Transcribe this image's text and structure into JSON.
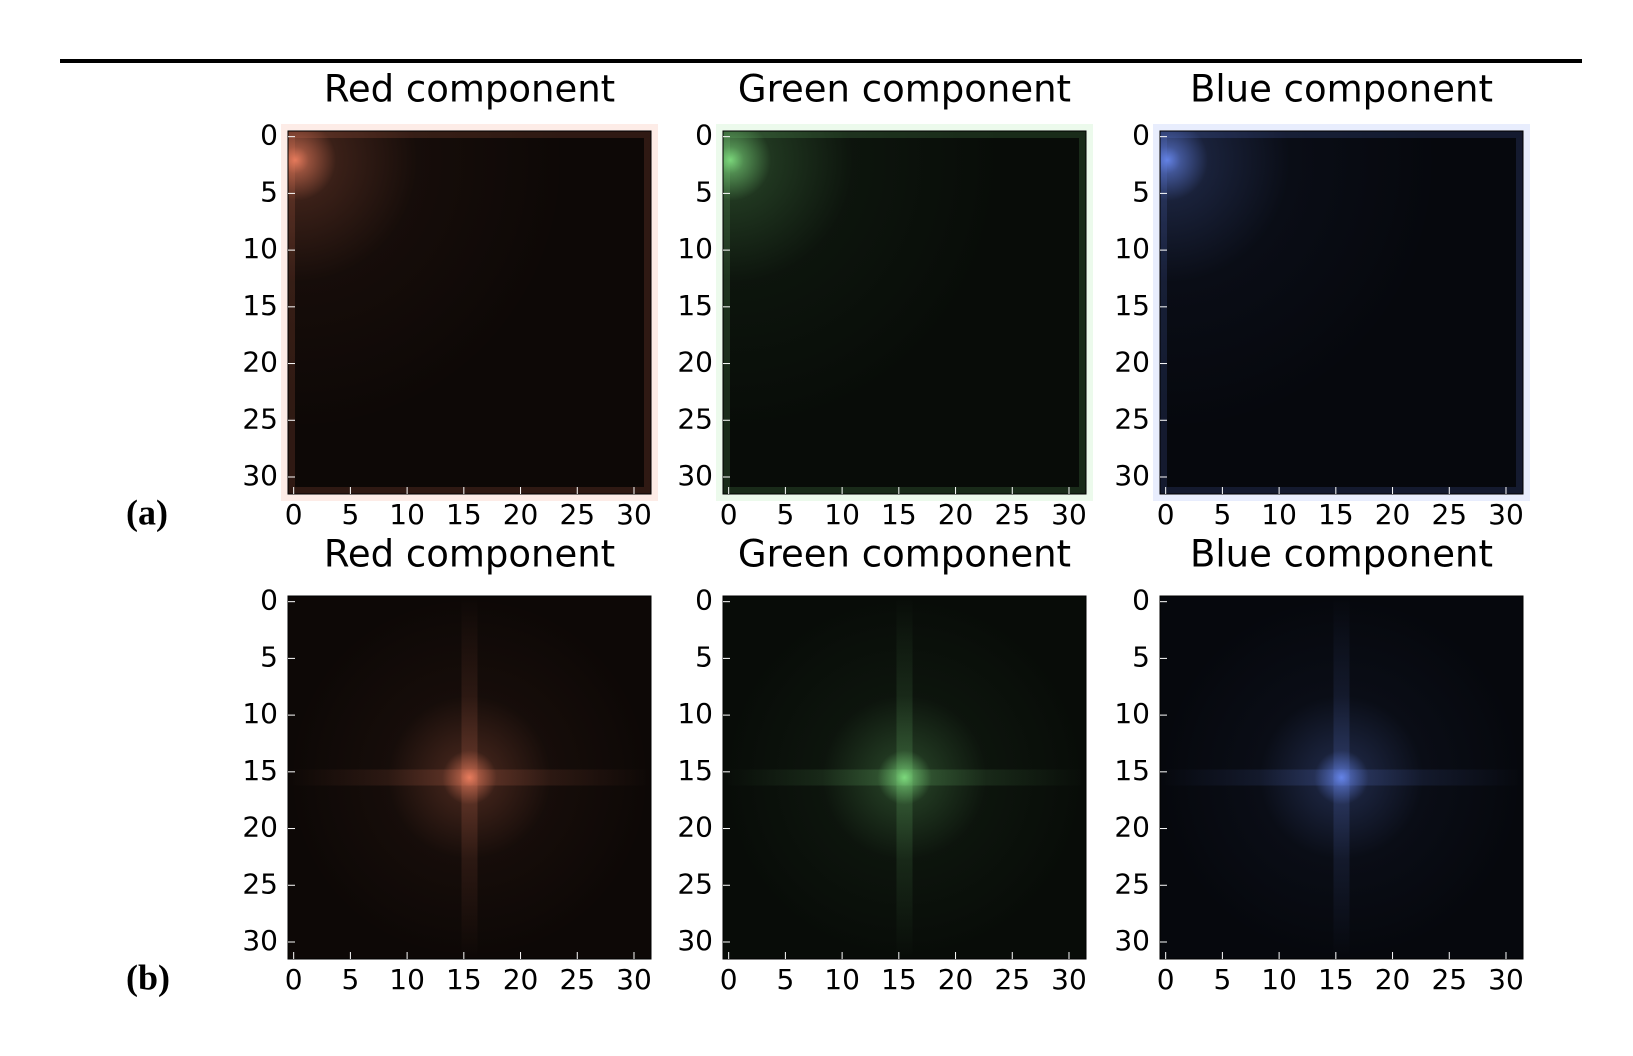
{
  "panel_labels": [
    "(a)",
    "(b)"
  ],
  "chart_data": [
    {
      "type": "image",
      "title": "Red component",
      "color": "#f08060",
      "xlim": [
        -0.5,
        31.5
      ],
      "ylim": [
        31.5,
        -0.5
      ],
      "xticks": [
        0,
        5,
        10,
        15,
        20,
        25,
        30
      ],
      "yticks": [
        0,
        5,
        10,
        15,
        20,
        25,
        30
      ]
    },
    {
      "type": "image",
      "title": "Green component",
      "color": "#80e080",
      "xlim": [
        -0.5,
        31.5
      ],
      "ylim": [
        31.5,
        -0.5
      ],
      "xticks": [
        0,
        5,
        10,
        15,
        20,
        25,
        30
      ],
      "yticks": [
        0,
        5,
        10,
        15,
        20,
        25,
        30
      ]
    },
    {
      "type": "image",
      "title": "Blue component",
      "color": "#6888f0",
      "xlim": [
        -0.5,
        31.5
      ],
      "ylim": [
        31.5,
        -0.5
      ],
      "xticks": [
        0,
        5,
        10,
        15,
        20,
        25,
        30
      ],
      "yticks": [
        0,
        5,
        10,
        15,
        20,
        25,
        30
      ]
    },
    {
      "type": "image",
      "title": "Red component",
      "color": "#f08060",
      "xlim": [
        -0.5,
        31.5
      ],
      "ylim": [
        31.5,
        -0.5
      ],
      "xticks": [
        0,
        5,
        10,
        15,
        20,
        25,
        30
      ],
      "yticks": [
        0,
        5,
        10,
        15,
        20,
        25,
        30
      ]
    },
    {
      "type": "image",
      "title": "Green component",
      "color": "#80e080",
      "xlim": [
        -0.5,
        31.5
      ],
      "ylim": [
        31.5,
        -0.5
      ],
      "xticks": [
        0,
        5,
        10,
        15,
        20,
        25,
        30
      ],
      "yticks": [
        0,
        5,
        10,
        15,
        20,
        25,
        30
      ]
    },
    {
      "type": "image",
      "title": "Blue component",
      "color": "#6888f0",
      "xlim": [
        -0.5,
        31.5
      ],
      "ylim": [
        31.5,
        -0.5
      ],
      "xticks": [
        0,
        5,
        10,
        15,
        20,
        25,
        30
      ],
      "yticks": [
        0,
        5,
        10,
        15,
        20,
        25,
        30
      ]
    }
  ]
}
